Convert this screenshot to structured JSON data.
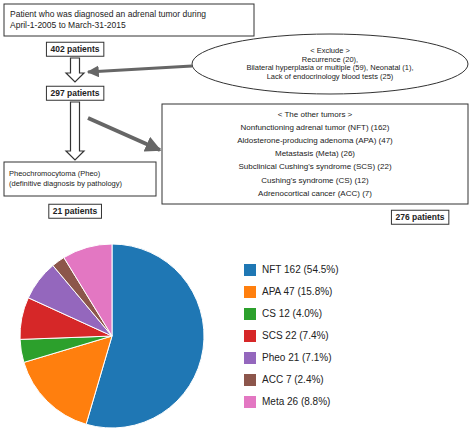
{
  "chart_data": {
    "type": "pie",
    "annotations": [
      "Patient who was diagnosed an adrenal tumor during\nApril-1-2005 to March-31-2015",
      "402 patients",
      "< Exclude >\nRecurrence (20),\nBilateral hyperplasia or multiple (59), Neonatal (1),\nLack of endocrinology blood tests (25)",
      "297 patients",
      "< The other tumors >\nNonfunctioning adrenal tumor (NFT) (162)\nAldosterone-producing adenoma (APA) (47)\nMetastasis (Meta) (26)\nSubclinical Cushing's syndrome (SCS) (22)\nCushing's syndrome (CS) (12)\nAdrenocortical cancer (ACC) (7)",
      "Pheochromocytoma (Pheo)\n(definitive diagnosis by pathology)",
      "21 patients",
      "276 patients"
    ],
    "categories": [
      "NFT 162 (54.5%)",
      "APA 47 (15.8%)",
      "CS 12 (4.0%)",
      "SCS 22 (7.4%)",
      "Pheo 21 (7.1%)",
      "ACC 7 (2.4%)",
      "Meta 26 (8.8%)"
    ],
    "values": [
      162,
      47,
      12,
      22,
      21,
      7,
      26
    ],
    "legend": "right"
  }
}
